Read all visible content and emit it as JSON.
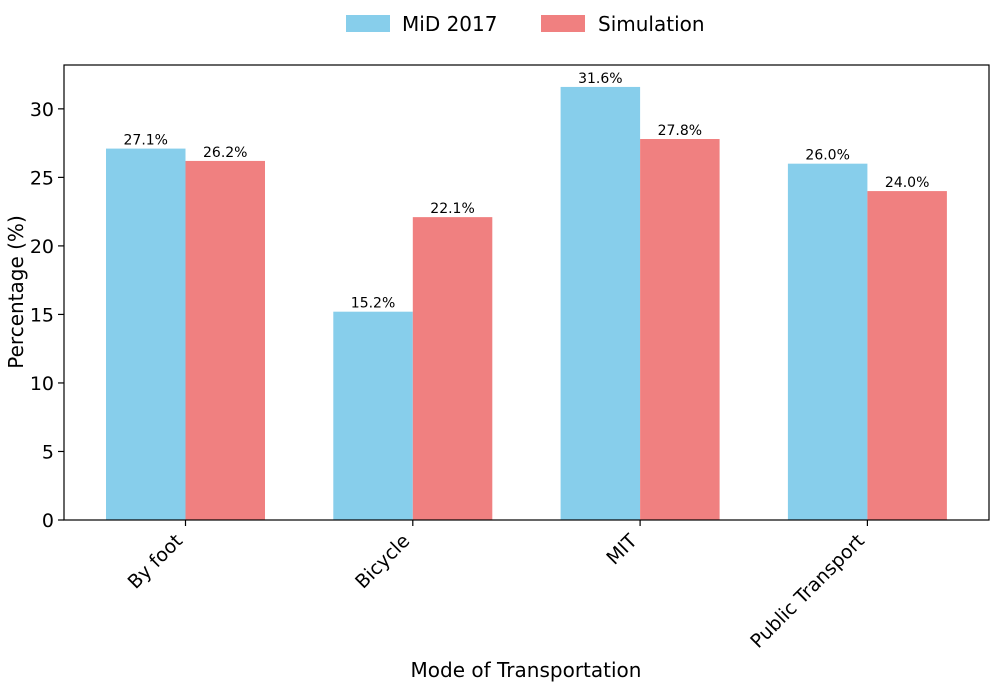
{
  "chart_data": {
    "type": "bar",
    "title": "",
    "xlabel": "Mode of Transportation",
    "ylabel": "Percentage (%)",
    "ylim": [
      0,
      33.2
    ],
    "yticks": [
      0,
      5,
      10,
      15,
      20,
      25,
      30
    ],
    "categories": [
      "By foot",
      "Bicycle",
      "MIT",
      "Public Transport"
    ],
    "series": [
      {
        "name": "MiD 2017",
        "color": "#87CEEB",
        "values": [
          27.1,
          15.2,
          31.6,
          26.0
        ],
        "labels": [
          "27.1%",
          "15.2%",
          "31.6%",
          "26.0%"
        ]
      },
      {
        "name": "Simulation",
        "color": "#F08080",
        "values": [
          26.2,
          22.1,
          27.8,
          24.0
        ],
        "labels": [
          "26.2%",
          "22.1%",
          "27.8%",
          "24.0%"
        ]
      }
    ],
    "legend": {
      "position": "top-center",
      "entries": [
        "MiD 2017",
        "Simulation"
      ]
    },
    "grid": false
  }
}
